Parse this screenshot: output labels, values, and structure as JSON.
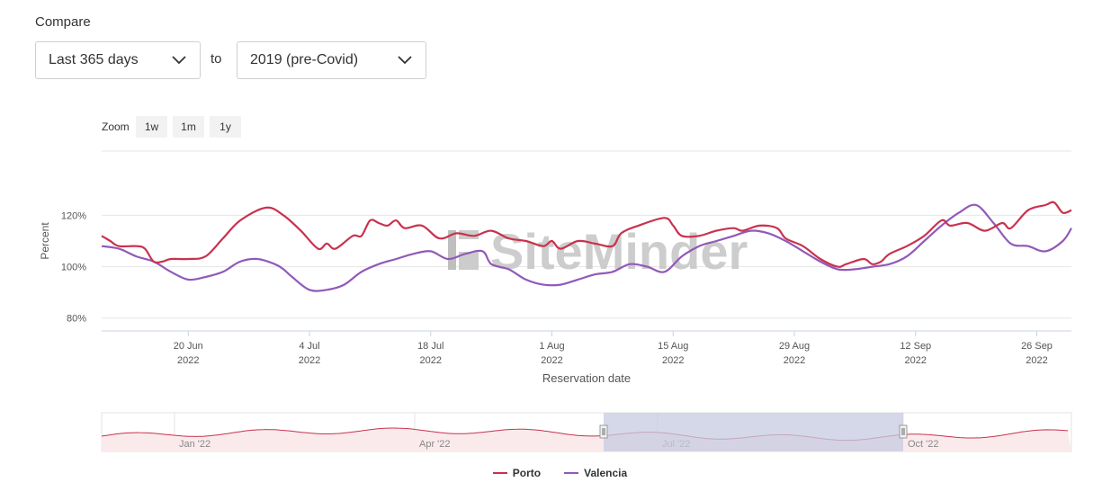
{
  "compare": {
    "label": "Compare",
    "to_label": "to",
    "period_value": "Last 365 days",
    "baseline_value": "2019 (pre-Covid)"
  },
  "zoom": {
    "label": "Zoom",
    "buttons": [
      "1w",
      "1m",
      "1y"
    ]
  },
  "watermark": "SiteMinder",
  "colors": {
    "porto": "#c8324e",
    "valencia": "#9159b8",
    "navigator_fill": "#fbeaec",
    "navigator_mask": "#c7cbe2"
  },
  "legend": [
    {
      "name": "Porto",
      "color": "#c8324e"
    },
    {
      "name": "Valencia",
      "color": "#9159b8"
    }
  ],
  "chart_data": {
    "type": "line",
    "xlabel": "Reservation date",
    "ylabel": "Percent",
    "x_start": "2022-06-10",
    "x_end": "2022-09-30",
    "ylim": [
      75,
      145
    ],
    "y_ticks": [
      {
        "value": 80,
        "label": "80%"
      },
      {
        "value": 100,
        "label": "100%"
      },
      {
        "value": 120,
        "label": "120%"
      }
    ],
    "x_ticks": [
      {
        "date": "2022-06-20",
        "label": "20 Jun",
        "year": "2022"
      },
      {
        "date": "2022-07-04",
        "label": "4 Jul",
        "year": "2022"
      },
      {
        "date": "2022-07-18",
        "label": "18 Jul",
        "year": "2022"
      },
      {
        "date": "2022-08-01",
        "label": "1 Aug",
        "year": "2022"
      },
      {
        "date": "2022-08-15",
        "label": "15 Aug",
        "year": "2022"
      },
      {
        "date": "2022-08-29",
        "label": "29 Aug",
        "year": "2022"
      },
      {
        "date": "2022-09-12",
        "label": "12 Sep",
        "year": "2022"
      },
      {
        "date": "2022-09-26",
        "label": "26 Sep",
        "year": "2022"
      }
    ],
    "grid": true,
    "legend_position": "bottom-center",
    "series": [
      {
        "name": "Porto",
        "color": "#c8324e",
        "points": [
          [
            "2022-06-10",
            112
          ],
          [
            "2022-06-11",
            110
          ],
          [
            "2022-06-12",
            108
          ],
          [
            "2022-06-14",
            108
          ],
          [
            "2022-06-15",
            107
          ],
          [
            "2022-06-16",
            102
          ],
          [
            "2022-06-17",
            102
          ],
          [
            "2022-06-18",
            103
          ],
          [
            "2022-06-20",
            103
          ],
          [
            "2022-06-22",
            104
          ],
          [
            "2022-06-24",
            111
          ],
          [
            "2022-06-26",
            118
          ],
          [
            "2022-06-29",
            123
          ],
          [
            "2022-07-01",
            120
          ],
          [
            "2022-07-03",
            114
          ],
          [
            "2022-07-05",
            107
          ],
          [
            "2022-07-06",
            109
          ],
          [
            "2022-07-07",
            107
          ],
          [
            "2022-07-09",
            112
          ],
          [
            "2022-07-10",
            112
          ],
          [
            "2022-07-11",
            118
          ],
          [
            "2022-07-12",
            117
          ],
          [
            "2022-07-13",
            116
          ],
          [
            "2022-07-14",
            118
          ],
          [
            "2022-07-15",
            115
          ],
          [
            "2022-07-17",
            116
          ],
          [
            "2022-07-19",
            111
          ],
          [
            "2022-07-21",
            113
          ],
          [
            "2022-07-23",
            112
          ],
          [
            "2022-07-25",
            114
          ],
          [
            "2022-07-27",
            111
          ],
          [
            "2022-07-29",
            110
          ],
          [
            "2022-07-31",
            108
          ],
          [
            "2022-08-01",
            110
          ],
          [
            "2022-08-02",
            107
          ],
          [
            "2022-08-04",
            110
          ],
          [
            "2022-08-06",
            109
          ],
          [
            "2022-08-08",
            108
          ],
          [
            "2022-08-09",
            113
          ],
          [
            "2022-08-11",
            116
          ],
          [
            "2022-08-14",
            119
          ],
          [
            "2022-08-15",
            116
          ],
          [
            "2022-08-16",
            112
          ],
          [
            "2022-08-18",
            112
          ],
          [
            "2022-08-20",
            114
          ],
          [
            "2022-08-22",
            115
          ],
          [
            "2022-08-23",
            114
          ],
          [
            "2022-08-25",
            116
          ],
          [
            "2022-08-27",
            115
          ],
          [
            "2022-08-28",
            111
          ],
          [
            "2022-08-30",
            108
          ],
          [
            "2022-09-01",
            103
          ],
          [
            "2022-09-03",
            100
          ],
          [
            "2022-09-04",
            101
          ],
          [
            "2022-09-06",
            103
          ],
          [
            "2022-09-07",
            101
          ],
          [
            "2022-09-08",
            102
          ],
          [
            "2022-09-09",
            105
          ],
          [
            "2022-09-11",
            108
          ],
          [
            "2022-09-13",
            112
          ],
          [
            "2022-09-15",
            118
          ],
          [
            "2022-09-16",
            116
          ],
          [
            "2022-09-18",
            117
          ],
          [
            "2022-09-20",
            114
          ],
          [
            "2022-09-22",
            117
          ],
          [
            "2022-09-23",
            115
          ],
          [
            "2022-09-25",
            122
          ],
          [
            "2022-09-27",
            124
          ],
          [
            "2022-09-28",
            125
          ],
          [
            "2022-09-29",
            121
          ],
          [
            "2022-09-30",
            122
          ]
        ]
      },
      {
        "name": "Valencia",
        "color": "#9159b8",
        "points": [
          [
            "2022-06-10",
            108
          ],
          [
            "2022-06-12",
            107
          ],
          [
            "2022-06-14",
            104
          ],
          [
            "2022-06-16",
            102
          ],
          [
            "2022-06-18",
            98
          ],
          [
            "2022-06-20",
            95
          ],
          [
            "2022-06-22",
            96
          ],
          [
            "2022-06-24",
            98
          ],
          [
            "2022-06-26",
            102
          ],
          [
            "2022-06-28",
            103
          ],
          [
            "2022-06-30",
            101
          ],
          [
            "2022-07-01",
            99
          ],
          [
            "2022-07-02",
            96
          ],
          [
            "2022-07-04",
            91
          ],
          [
            "2022-07-06",
            91
          ],
          [
            "2022-07-08",
            93
          ],
          [
            "2022-07-10",
            98
          ],
          [
            "2022-07-12",
            101
          ],
          [
            "2022-07-14",
            103
          ],
          [
            "2022-07-16",
            105
          ],
          [
            "2022-07-18",
            106
          ],
          [
            "2022-07-20",
            103
          ],
          [
            "2022-07-22",
            105
          ],
          [
            "2022-07-24",
            106
          ],
          [
            "2022-07-25",
            101
          ],
          [
            "2022-07-27",
            99
          ],
          [
            "2022-07-29",
            95
          ],
          [
            "2022-07-31",
            93
          ],
          [
            "2022-08-02",
            93
          ],
          [
            "2022-08-04",
            95
          ],
          [
            "2022-08-06",
            97
          ],
          [
            "2022-08-08",
            98
          ],
          [
            "2022-08-10",
            101
          ],
          [
            "2022-08-12",
            100
          ],
          [
            "2022-08-14",
            98
          ],
          [
            "2022-08-16",
            104
          ],
          [
            "2022-08-18",
            108
          ],
          [
            "2022-08-20",
            110
          ],
          [
            "2022-08-22",
            112
          ],
          [
            "2022-08-24",
            114
          ],
          [
            "2022-08-26",
            113
          ],
          [
            "2022-08-28",
            110
          ],
          [
            "2022-08-30",
            106
          ],
          [
            "2022-09-01",
            102
          ],
          [
            "2022-09-03",
            99
          ],
          [
            "2022-09-05",
            99
          ],
          [
            "2022-09-07",
            100
          ],
          [
            "2022-09-09",
            101
          ],
          [
            "2022-09-11",
            104
          ],
          [
            "2022-09-13",
            110
          ],
          [
            "2022-09-15",
            116
          ],
          [
            "2022-09-17",
            121
          ],
          [
            "2022-09-19",
            124
          ],
          [
            "2022-09-21",
            117
          ],
          [
            "2022-09-23",
            109
          ],
          [
            "2022-09-25",
            108
          ],
          [
            "2022-09-27",
            106
          ],
          [
            "2022-09-29",
            110
          ],
          [
            "2022-09-30",
            115
          ]
        ]
      }
    ],
    "navigator": {
      "x_labels": [
        "Jan '22",
        "Apr '22",
        "Jul '22",
        "Oct '22"
      ],
      "selection": [
        "2022-06-10",
        "2022-09-30"
      ]
    }
  }
}
